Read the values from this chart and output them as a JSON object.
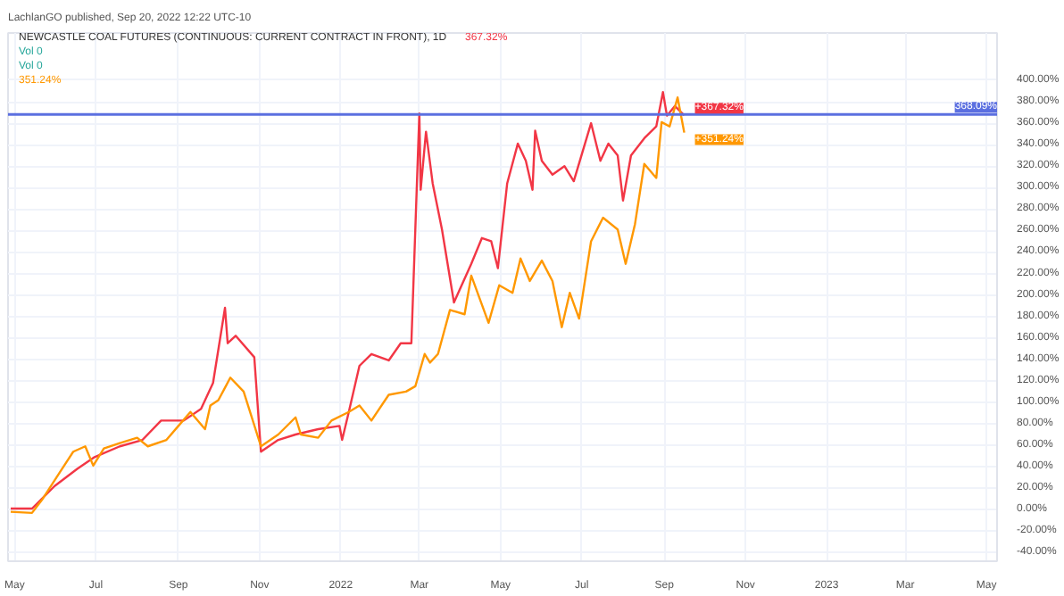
{
  "chart_data": {
    "type": "line",
    "title": "NEWCASTLE COAL FUTURES (CONTINUOUS: CURRENT CONTRACT IN FRONT), 1D",
    "annotations": [
      "LachlanGO published, Sep 20, 2022 12:22 UTC-10",
      "367.32%",
      "Vol 0",
      "Vol 0",
      "351.24%",
      {
        "text": "+367.32%",
        "x": "2022-09-16",
        "y": 367.32
      },
      {
        "text": "+351.24%",
        "x": "2022-09-16",
        "y": 351.24
      }
    ],
    "series": [
      {
        "color": "#f23645",
        "x": [
          "2021-04-28",
          "2021-05-14",
          "2021-05-31",
          "2021-06-17",
          "2021-06-30",
          "2021-07-19",
          "2021-08-05",
          "2021-08-19",
          "2021-09-05",
          "2021-09-18",
          "2021-09-27",
          "2021-10-06",
          "2021-10-08",
          "2021-10-14",
          "2021-10-28",
          "2021-11-02",
          "2021-11-15",
          "2021-11-28",
          "2021-12-15",
          "2021-12-31",
          "2022-01-02",
          "2022-01-07",
          "2022-01-15",
          "2022-01-24",
          "2022-02-06",
          "2022-02-15",
          "2022-02-23",
          "2022-03-01",
          "2022-03-02",
          "2022-03-06",
          "2022-03-11",
          "2022-03-18",
          "2022-03-27",
          "2022-04-09",
          "2022-04-17",
          "2022-04-24",
          "2022-04-29",
          "2022-05-06",
          "2022-05-14",
          "2022-05-20",
          "2022-05-25",
          "2022-05-27",
          "2022-06-01",
          "2022-06-09",
          "2022-06-18",
          "2022-06-25",
          "2022-07-08",
          "2022-07-15",
          "2022-07-21",
          "2022-07-28",
          "2022-08-01",
          "2022-08-07",
          "2022-08-17",
          "2022-08-26",
          "2022-08-31",
          "2022-09-03",
          "2022-09-09",
          "2022-09-16"
        ],
        "values": [
          1,
          1,
          22,
          38,
          49,
          59,
          65,
          83,
          83,
          94,
          118,
          188,
          155,
          162,
          142,
          54,
          65,
          70,
          75,
          78,
          65,
          91,
          134,
          145,
          139,
          155,
          155,
          369,
          298,
          352,
          304,
          261,
          193,
          229,
          253,
          250,
          225,
          304,
          341,
          325,
          298,
          353,
          325,
          312,
          320,
          306,
          360,
          325,
          341,
          330,
          288,
          330,
          346,
          357,
          389,
          367,
          376,
          367.32
        ]
      },
      {
        "color": "#ff9800",
        "x": [
          "2021-04-28",
          "2021-05-14",
          "2021-05-22",
          "2021-06-04",
          "2021-06-14",
          "2021-06-23",
          "2021-06-29",
          "2021-07-07",
          "2021-07-19",
          "2021-08-01",
          "2021-08-09",
          "2021-08-23",
          "2021-09-01",
          "2021-09-10",
          "2021-09-21",
          "2021-09-25",
          "2021-10-01",
          "2021-10-10",
          "2021-10-20",
          "2021-11-02",
          "2021-11-15",
          "2021-11-28",
          "2021-12-02",
          "2021-12-15",
          "2021-12-25",
          "2022-01-07",
          "2022-01-15",
          "2022-01-24",
          "2022-02-06",
          "2022-02-19",
          "2022-02-26",
          "2022-03-05",
          "2022-03-09",
          "2022-03-15",
          "2022-03-24",
          "2022-04-04",
          "2022-04-09",
          "2022-04-22",
          "2022-04-30",
          "2022-05-10",
          "2022-05-16",
          "2022-05-23",
          "2022-06-01",
          "2022-06-09",
          "2022-06-16",
          "2022-06-22",
          "2022-06-29",
          "2022-07-08",
          "2022-07-17",
          "2022-07-28",
          "2022-08-03",
          "2022-08-10",
          "2022-08-17",
          "2022-08-26",
          "2022-08-30",
          "2022-09-05",
          "2022-09-11",
          "2022-09-16"
        ],
        "values": [
          -2,
          -3,
          10,
          35,
          54,
          59,
          41,
          57,
          62,
          67,
          59,
          65,
          78,
          91,
          75,
          97,
          102,
          123,
          110,
          59,
          70,
          86,
          70,
          67,
          83,
          91,
          97,
          83,
          107,
          110,
          115,
          145,
          137,
          145,
          186,
          182,
          218,
          174,
          209,
          202,
          234,
          213,
          232,
          213,
          170,
          202,
          178,
          250,
          272,
          261,
          229,
          266,
          322,
          309,
          361,
          357,
          384,
          351.24
        ]
      }
    ],
    "xlim": [
      "2021-04-26",
      "2023-05-09"
    ],
    "xticks": [
      {
        "value": "2021-05-01",
        "label": "May"
      },
      {
        "value": "2021-07-01",
        "label": "Jul"
      },
      {
        "value": "2021-09-01",
        "label": "Sep"
      },
      {
        "value": "2021-11-01",
        "label": "Nov"
      },
      {
        "value": "2022-01-01",
        "label": "2022"
      },
      {
        "value": "2022-03-01",
        "label": "Mar"
      },
      {
        "value": "2022-05-01",
        "label": "May"
      },
      {
        "value": "2022-07-01",
        "label": "Jul"
      },
      {
        "value": "2022-09-01",
        "label": "Sep"
      },
      {
        "value": "2022-11-01",
        "label": "Nov"
      },
      {
        "value": "2023-01-01",
        "label": "2023"
      },
      {
        "value": "2023-03-01",
        "label": "Mar"
      },
      {
        "value": "2023-05-01",
        "label": "May"
      }
    ],
    "ylim": [
      -48,
      444
    ],
    "yticks": [
      {
        "value": -40,
        "label": "-40.00%"
      },
      {
        "value": -20,
        "label": "-20.00%"
      },
      {
        "value": 0,
        "label": "0.00%"
      },
      {
        "value": 20,
        "label": "20.00%"
      },
      {
        "value": 40,
        "label": "40.00%"
      },
      {
        "value": 60,
        "label": "60.00%"
      },
      {
        "value": 80,
        "label": "80.00%"
      },
      {
        "value": 100,
        "label": "100.00%"
      },
      {
        "value": 120,
        "label": "120.00%"
      },
      {
        "value": 140,
        "label": "140.00%"
      },
      {
        "value": 160,
        "label": "160.00%"
      },
      {
        "value": 180,
        "label": "180.00%"
      },
      {
        "value": 200,
        "label": "200.00%"
      },
      {
        "value": 220,
        "label": "220.00%"
      },
      {
        "value": 240,
        "label": "240.00%"
      },
      {
        "value": 260,
        "label": "260.00%"
      },
      {
        "value": 280,
        "label": "280.00%"
      },
      {
        "value": 300,
        "label": "300.00%"
      },
      {
        "value": 320,
        "label": "320.00%"
      },
      {
        "value": 340,
        "label": "340.00%"
      },
      {
        "value": 360,
        "label": "360.00%"
      },
      {
        "value": 380,
        "label": "380.00%"
      },
      {
        "value": 400,
        "label": "400.00%"
      }
    ],
    "ref_lines": [
      {
        "axis": "y",
        "value": 368.09,
        "label": "368.09%",
        "color": "#5b6fe0"
      }
    ],
    "grid": true
  }
}
